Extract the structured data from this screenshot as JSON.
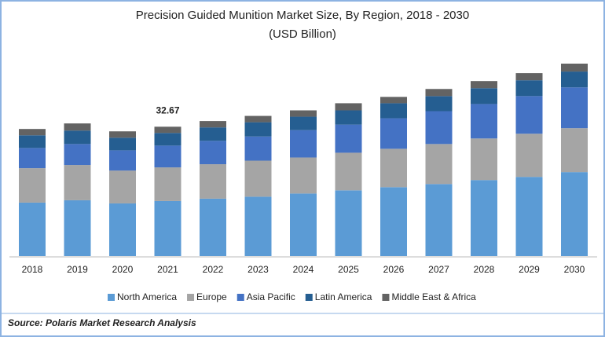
{
  "chart_data": {
    "type": "bar",
    "stacked": true,
    "title": "Precision Guided Munition Market Size, By Region, 2018 - 2030",
    "subtitle": "(USD Billion)",
    "source": "Source: Polaris  Market Research Analysis",
    "categories": [
      "2018",
      "2019",
      "2020",
      "2021",
      "2022",
      "2023",
      "2024",
      "2025",
      "2026",
      "2027",
      "2028",
      "2029",
      "2030"
    ],
    "series": [
      {
        "name": "North America",
        "color": "#5b9bd5",
        "values": [
          13.5,
          14.1,
          13.3,
          13.9,
          14.5,
          15.0,
          15.8,
          16.6,
          17.4,
          18.2,
          19.2,
          20.0,
          21.2
        ]
      },
      {
        "name": "Europe",
        "color": "#a5a5a5",
        "values": [
          8.7,
          8.9,
          8.3,
          8.5,
          8.7,
          9.1,
          9.1,
          9.5,
          9.7,
          10.1,
          10.5,
          10.9,
          11.1
        ]
      },
      {
        "name": "Asia Pacific",
        "color": "#4472c4",
        "values": [
          5.1,
          5.3,
          5.1,
          5.5,
          5.9,
          6.1,
          6.9,
          7.1,
          7.7,
          8.3,
          8.7,
          9.5,
          10.3
        ]
      },
      {
        "name": "Latin America",
        "color": "#255e91",
        "values": [
          3.2,
          3.4,
          3.2,
          3.2,
          3.4,
          3.6,
          3.4,
          3.6,
          3.8,
          3.8,
          4.0,
          4.0,
          4.0
        ]
      },
      {
        "name": "Middle East & Africa",
        "color": "#636363",
        "values": [
          1.6,
          1.8,
          1.6,
          1.57,
          1.6,
          1.6,
          1.6,
          1.8,
          1.6,
          1.8,
          1.8,
          1.8,
          2.0
        ]
      }
    ],
    "annotation": {
      "category": "2021",
      "text": "32.67"
    },
    "legend": "bottom"
  }
}
